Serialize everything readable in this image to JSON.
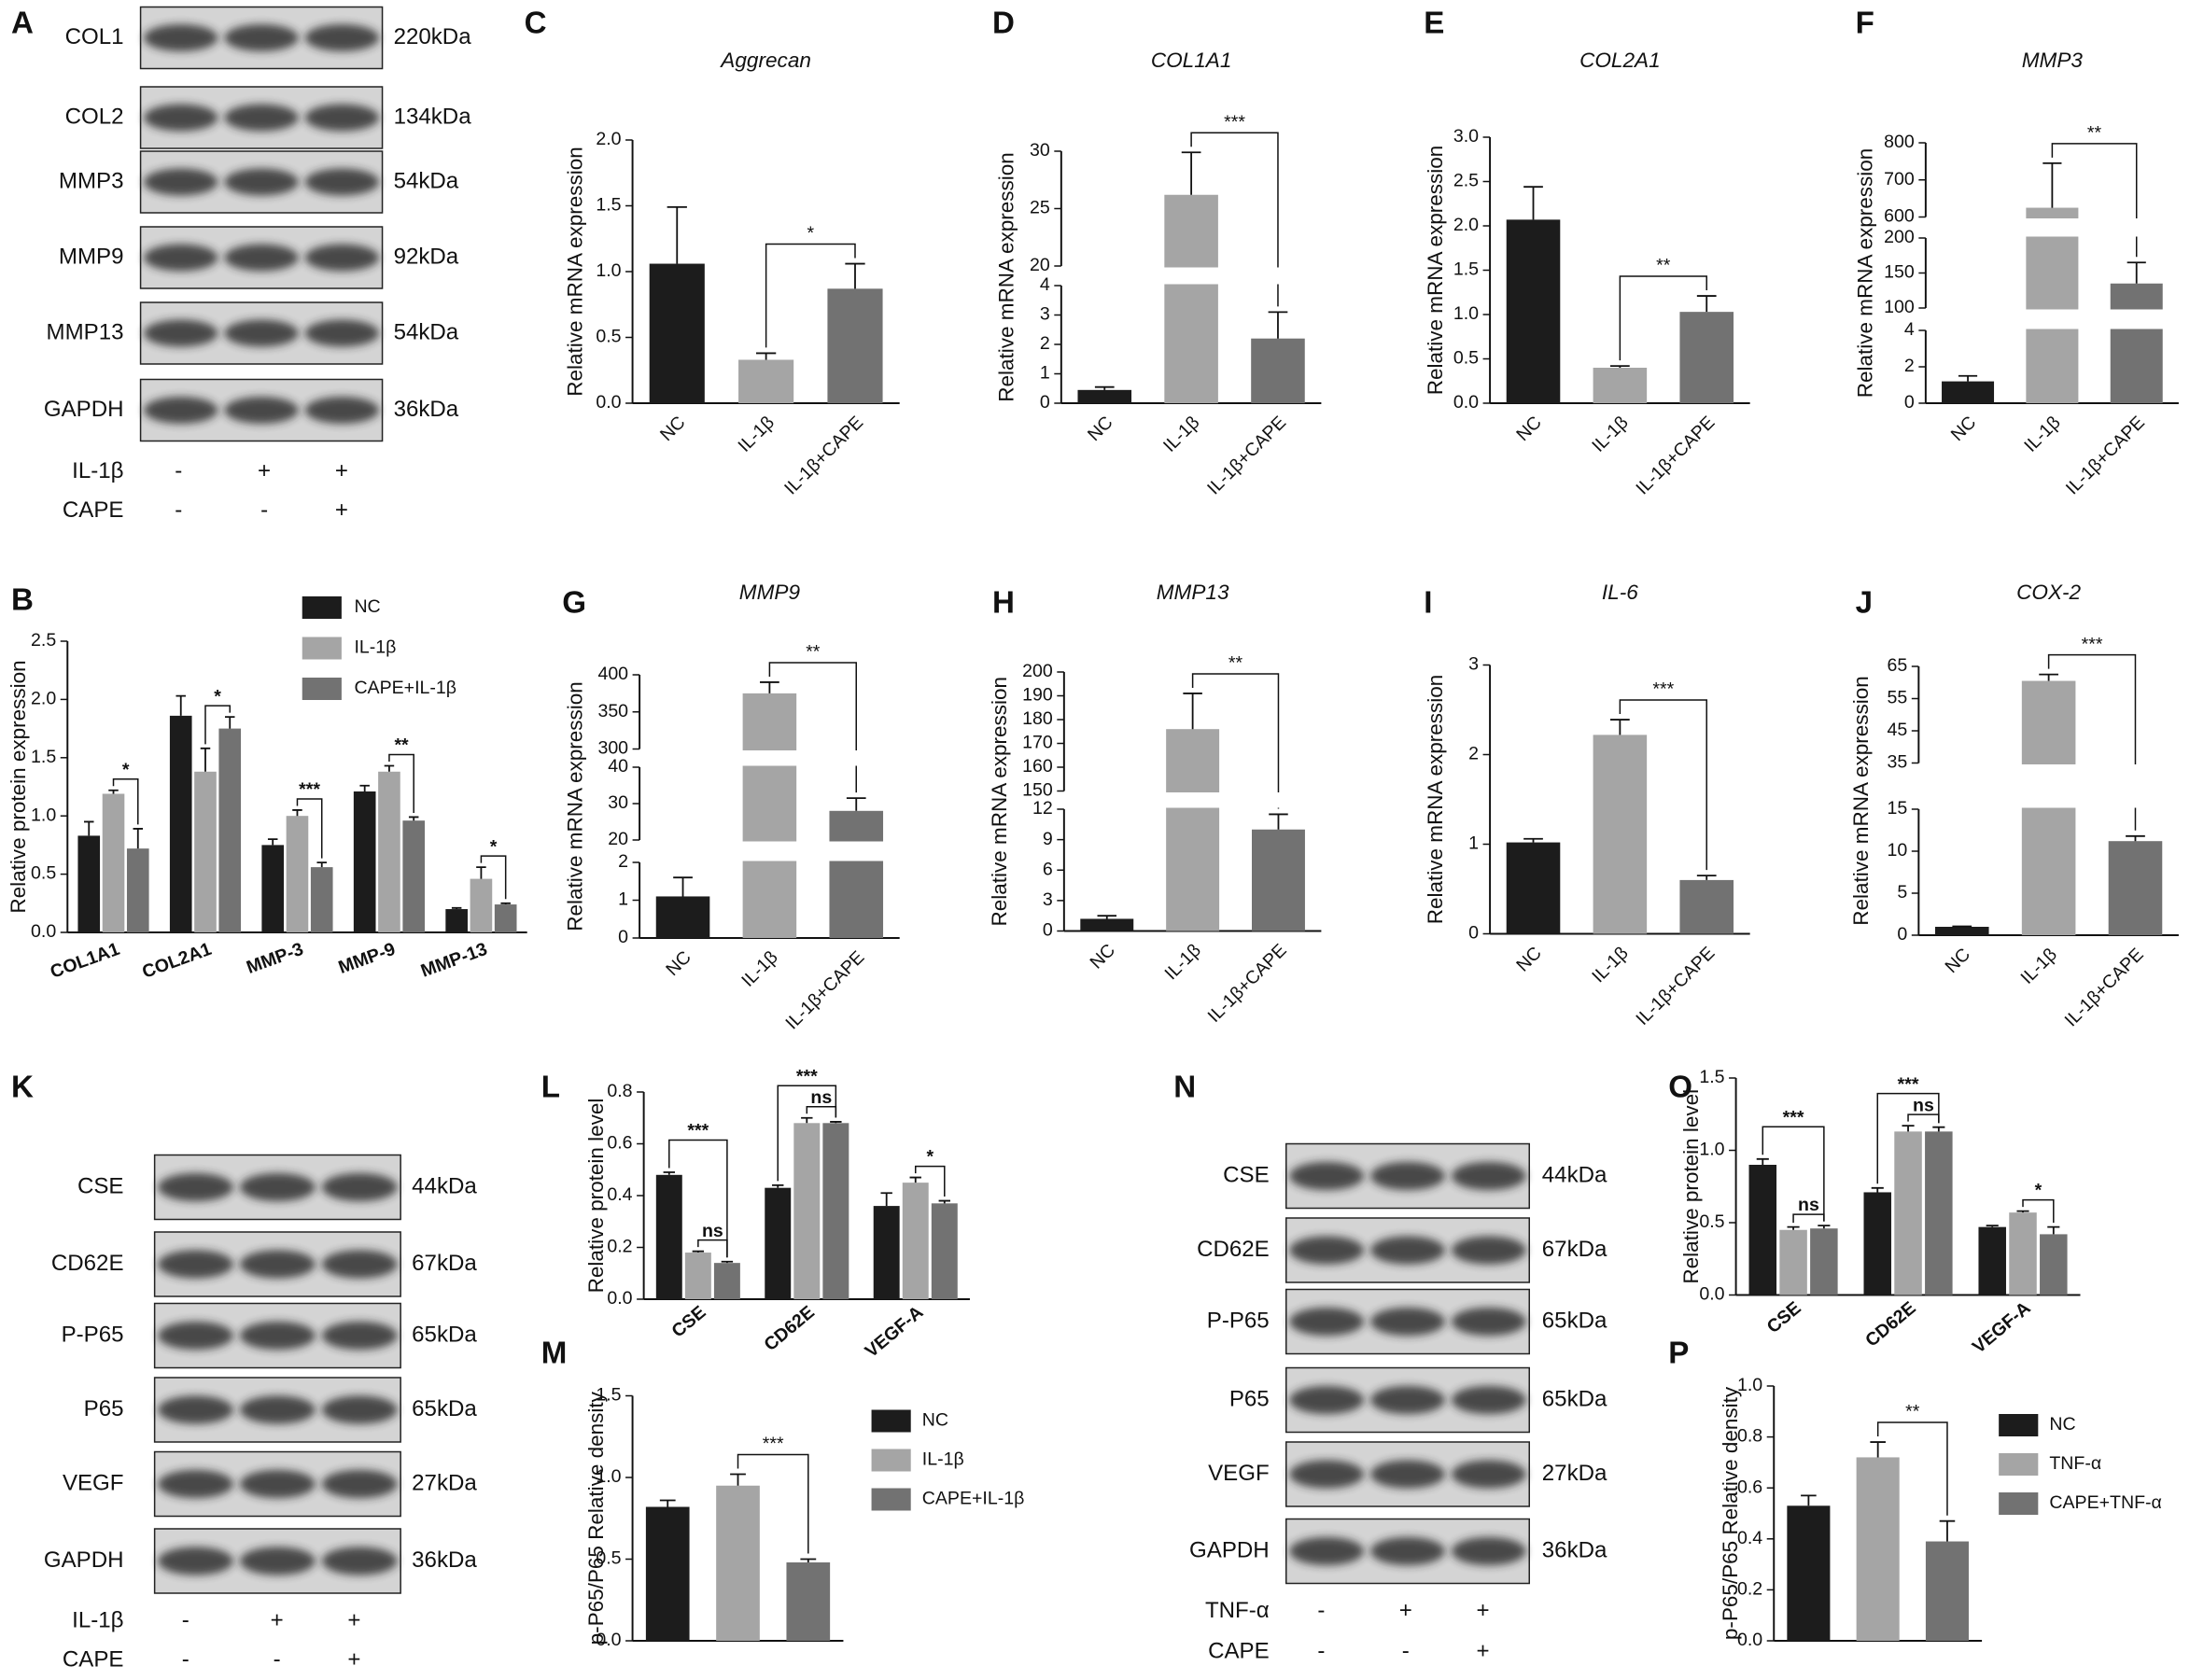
{
  "blots": [
    {
      "panel": "A",
      "bands": [
        {
          "name": "COL1",
          "size": "220kDa"
        },
        {
          "name": "COL2",
          "size": "134kDa"
        },
        {
          "name": "MMP3",
          "size": "54kDa"
        },
        {
          "name": "MMP9",
          "size": "92kDa"
        },
        {
          "name": "MMP13",
          "size": "54kDa"
        },
        {
          "name": "GAPDH",
          "size": "36kDa"
        }
      ],
      "treatments": [
        {
          "name": "IL-1β",
          "signs": [
            "-",
            "+",
            "+"
          ]
        },
        {
          "name": "CAPE",
          "signs": [
            "-",
            "-",
            "+"
          ]
        }
      ]
    },
    {
      "panel": "K",
      "bands": [
        {
          "name": "CSE",
          "size": "44kDa"
        },
        {
          "name": "CD62E",
          "size": "67kDa"
        },
        {
          "name": "P-P65",
          "size": "65kDa"
        },
        {
          "name": "P65",
          "size": "65kDa"
        },
        {
          "name": "VEGF",
          "size": "27kDa"
        },
        {
          "name": "GAPDH",
          "size": "36kDa"
        }
      ],
      "treatments": [
        {
          "name": "IL-1β",
          "signs": [
            "-",
            "+",
            "+"
          ]
        },
        {
          "name": "CAPE",
          "signs": [
            "-",
            "-",
            "+"
          ]
        }
      ]
    },
    {
      "panel": "N",
      "bands": [
        {
          "name": "CSE",
          "size": "44kDa"
        },
        {
          "name": "CD62E",
          "size": "67kDa"
        },
        {
          "name": "P-P65",
          "size": "65kDa"
        },
        {
          "name": "P65",
          "size": "65kDa"
        },
        {
          "name": "VEGF",
          "size": "27kDa"
        },
        {
          "name": "GAPDH",
          "size": "36kDa"
        }
      ],
      "treatments": [
        {
          "name": "TNF-α",
          "signs": [
            "-",
            "+",
            "+"
          ]
        },
        {
          "name": "CAPE",
          "signs": [
            "-",
            "-",
            "+"
          ]
        }
      ]
    }
  ],
  "chart_data": [
    {
      "panel": "B",
      "type": "grouped_bar",
      "ylabel": "Relative protein expression",
      "categories": [
        "COL1A1",
        "COL2A1",
        "MMP-3",
        "MMP-9",
        "MMP-13"
      ],
      "series": [
        {
          "name": "NC",
          "color": "#1c1c1c",
          "values": [
            0.83,
            1.86,
            0.75,
            1.21,
            0.2
          ],
          "errors": [
            0.12,
            0.17,
            0.05,
            0.05,
            0.01
          ]
        },
        {
          "name": "IL-1β",
          "color": "#a5a5a5",
          "values": [
            1.19,
            1.38,
            1,
            1.38,
            0.46
          ],
          "errors": [
            0.03,
            0.2,
            0.05,
            0.05,
            0.1
          ]
        },
        {
          "name": "CAPE+IL-1β",
          "color": "#727272",
          "values": [
            0.72,
            1.75,
            0.56,
            0.96,
            0.24
          ],
          "errors": [
            0.17,
            0.1,
            0.04,
            0.03,
            0.01
          ]
        }
      ],
      "ylim": [
        0,
        2.5
      ],
      "yticks": [
        {
          "value": 0,
          "label": "0.0"
        },
        0.5,
        {
          "value": 1,
          "label": "1.0"
        },
        1.5,
        {
          "value": 2,
          "label": "2.0"
        },
        2.5
      ],
      "significance": [
        "*",
        "*",
        "***",
        "**",
        "*"
      ]
    },
    {
      "panel": "C",
      "type": "bar",
      "title": "Aggrecan",
      "ylabel": "Relative mRNA expression",
      "categories": [
        "NC",
        "IL-1β",
        "IL-1β+CAPE"
      ],
      "colors": [
        "#1c1c1c",
        "#a5a5a5",
        "#727272"
      ],
      "values": [
        1.06,
        0.33,
        0.87
      ],
      "errors": [
        0.43,
        0.05,
        0.19
      ],
      "ylim": [
        0,
        2
      ],
      "yticks": [
        {
          "value": 0,
          "label": "0.0"
        },
        0.5,
        {
          "value": 1,
          "label": "1.0"
        },
        1.5,
        {
          "value": 2,
          "label": "2.0"
        }
      ],
      "significance": [
        "*"
      ]
    },
    {
      "panel": "D",
      "type": "bar",
      "title": "COL1A1",
      "ylabel": "Relative mRNA expression",
      "categories": [
        "NC",
        "IL-1β",
        "IL-1β+CAPE"
      ],
      "colors": [
        "#1c1c1c",
        "#a5a5a5",
        "#727272"
      ],
      "values": [
        0.45,
        26.2,
        2.2
      ],
      "errors": [
        0.1,
        3.7,
        0.9
      ],
      "ylim_segments": [
        [
          0,
          4
        ],
        [
          20,
          30
        ]
      ],
      "yticks_segments": [
        [
          0,
          1,
          2,
          3,
          4
        ],
        [
          20,
          25,
          30
        ]
      ],
      "significance": [
        "***"
      ]
    },
    {
      "panel": "E",
      "type": "bar",
      "title": "COL2A1",
      "ylabel": "Relative mRNA expression",
      "categories": [
        "NC",
        "IL-1β",
        "IL-1β+CAPE"
      ],
      "colors": [
        "#1c1c1c",
        "#a5a5a5",
        "#727272"
      ],
      "values": [
        2.07,
        0.4,
        1.03
      ],
      "errors": [
        0.37,
        0.02,
        0.18
      ],
      "ylim": [
        0,
        3
      ],
      "yticks": [
        {
          "value": 0,
          "label": "0.0"
        },
        0.5,
        {
          "value": 1,
          "label": "1.0"
        },
        1.5,
        {
          "value": 2,
          "label": "2.0"
        },
        2.5,
        {
          "value": 3,
          "label": "3.0"
        }
      ],
      "significance": [
        "**"
      ]
    },
    {
      "panel": "F",
      "type": "bar",
      "title": "MMP3",
      "ylabel": "Relative mRNA expression",
      "categories": [
        "NC",
        "IL-1β",
        "IL-1β+CAPE"
      ],
      "colors": [
        "#1c1c1c",
        "#a5a5a5",
        "#727272"
      ],
      "values": [
        1.2,
        625,
        135
      ],
      "errors": [
        0.3,
        120,
        30
      ],
      "ylim_segments": [
        [
          0,
          4
        ],
        [
          100,
          200
        ],
        [
          600,
          800
        ]
      ],
      "yticks_segments": [
        [
          0,
          2,
          4
        ],
        [
          100,
          150,
          200
        ],
        [
          600,
          700,
          800
        ]
      ],
      "significance": [
        "**"
      ]
    },
    {
      "panel": "G",
      "type": "bar",
      "title": "MMP9",
      "ylabel": "Relative mRNA expression",
      "categories": [
        "NC",
        "IL-1β",
        "IL-1β+CAPE"
      ],
      "colors": [
        "#1c1c1c",
        "#a5a5a5",
        "#727272"
      ],
      "values": [
        1.1,
        375,
        28
      ],
      "errors": [
        0.5,
        15,
        3.5
      ],
      "ylim_segments": [
        [
          0,
          2
        ],
        [
          20,
          40
        ],
        [
          300,
          400
        ]
      ],
      "yticks_segments": [
        [
          0,
          1,
          2
        ],
        [
          20,
          30,
          40
        ],
        [
          300,
          350,
          400
        ]
      ],
      "significance": [
        "**"
      ]
    },
    {
      "panel": "H",
      "type": "bar",
      "title": "MMP13",
      "ylabel": "Relative mRNA expression",
      "categories": [
        "NC",
        "IL-1β",
        "IL-1β+CAPE"
      ],
      "colors": [
        "#1c1c1c",
        "#a5a5a5",
        "#727272"
      ],
      "values": [
        1.2,
        176,
        10
      ],
      "errors": [
        0.3,
        15,
        1.5
      ],
      "ylim_segments": [
        [
          0,
          12
        ],
        [
          150,
          200
        ]
      ],
      "yticks_segments": [
        [
          0,
          3,
          6,
          9,
          12
        ],
        [
          150,
          160,
          170,
          180,
          190,
          200
        ]
      ],
      "significance": [
        "**"
      ]
    },
    {
      "panel": "I",
      "type": "bar",
      "title": "IL-6",
      "ylabel": "Relative mRNA expression",
      "categories": [
        "NC",
        "IL-1β",
        "IL-1β+CAPE"
      ],
      "colors": [
        "#1c1c1c",
        "#a5a5a5",
        "#727272"
      ],
      "values": [
        1.02,
        2.22,
        0.6
      ],
      "errors": [
        0.04,
        0.17,
        0.05
      ],
      "ylim": [
        0,
        3
      ],
      "yticks": [
        0,
        1,
        2,
        3
      ],
      "significance": [
        "***"
      ]
    },
    {
      "panel": "J",
      "type": "bar",
      "title": "COX-2",
      "ylabel": "Relative mRNA expression",
      "categories": [
        "NC",
        "IL-1β",
        "IL-1β+CAPE"
      ],
      "colors": [
        "#1c1c1c",
        "#a5a5a5",
        "#727272"
      ],
      "values": [
        1,
        60.5,
        11.2
      ],
      "errors": [
        0.05,
        2,
        0.6
      ],
      "ylim_segments": [
        [
          0,
          15
        ],
        [
          35,
          65
        ]
      ],
      "yticks_segments": [
        [
          0,
          5,
          10,
          15
        ],
        [
          35,
          45,
          55,
          65
        ]
      ],
      "significance": [
        "***"
      ]
    },
    {
      "panel": "L",
      "type": "grouped_bar",
      "ylabel": "Relative protein level",
      "categories": [
        "CSE",
        "CD62E",
        "VEGF-A"
      ],
      "series": [
        {
          "color": "#1c1c1c",
          "values": [
            0.48,
            0.43,
            0.36
          ],
          "errors": [
            0.01,
            0.01,
            0.05
          ]
        },
        {
          "color": "#a5a5a5",
          "values": [
            0.18,
            0.68,
            0.45
          ],
          "errors": [
            0.005,
            0.02,
            0.02
          ]
        },
        {
          "color": "#727272",
          "values": [
            0.14,
            0.68,
            0.37
          ],
          "errors": [
            0.005,
            0.005,
            0.01
          ]
        }
      ],
      "ylim": [
        0,
        0.8
      ],
      "yticks": [
        {
          "value": 0,
          "label": "0.0"
        },
        0.2,
        0.4,
        0.6,
        0.8
      ],
      "significance": [
        "***",
        "ns",
        "***",
        "ns",
        "*"
      ]
    },
    {
      "panel": "M",
      "type": "bar",
      "legend": true,
      "ylabel": "p-P65/P65 Relative density",
      "categories": [
        "NC",
        "IL-1β",
        "CAPE+IL-1β"
      ],
      "colors": [
        "#1c1c1c",
        "#a5a5a5",
        "#727272"
      ],
      "values": [
        0.82,
        0.95,
        0.48
      ],
      "errors": [
        0.04,
        0.07,
        0.02
      ],
      "ylim": [
        0,
        1.5
      ],
      "yticks": [
        {
          "value": 0,
          "label": "0.0"
        },
        0.5,
        {
          "value": 1,
          "label": "1.0"
        },
        1.5
      ],
      "significance": [
        "***"
      ]
    },
    {
      "panel": "O",
      "type": "grouped_bar",
      "ylabel": "Relative protein level",
      "categories": [
        "CSE",
        "CD62E",
        "VEGF-A"
      ],
      "series": [
        {
          "color": "#1c1c1c",
          "values": [
            0.9,
            0.71,
            0.47
          ],
          "errors": [
            0.04,
            0.03,
            0.01
          ]
        },
        {
          "color": "#a5a5a5",
          "values": [
            0.45,
            1.13,
            0.57
          ],
          "errors": [
            0.02,
            0.04,
            0.01
          ]
        },
        {
          "color": "#727272",
          "values": [
            0.46,
            1.13,
            0.42
          ],
          "errors": [
            0.02,
            0.03,
            0.05
          ]
        }
      ],
      "ylim": [
        0,
        1.5
      ],
      "yticks": [
        {
          "value": 0,
          "label": "0.0"
        },
        0.5,
        {
          "value": 1,
          "label": "1.0"
        },
        1.5
      ],
      "significance": [
        "***",
        "ns",
        "***",
        "ns",
        "*"
      ]
    },
    {
      "panel": "P",
      "type": "bar",
      "legend": true,
      "ylabel": "p-P65/P65 Relative density",
      "categories": [
        "NC",
        "TNF-α",
        "CAPE+TNF-α"
      ],
      "colors": [
        "#1c1c1c",
        "#a5a5a5",
        "#727272"
      ],
      "values": [
        0.53,
        0.72,
        0.39
      ],
      "errors": [
        0.04,
        0.06,
        0.08
      ],
      "ylim": [
        0,
        1
      ],
      "yticks": [
        {
          "value": 0,
          "label": "0.0"
        },
        0.2,
        0.4,
        0.6,
        0.8,
        {
          "value": 1,
          "label": "1.0"
        }
      ],
      "significance": [
        "**"
      ]
    }
  ]
}
